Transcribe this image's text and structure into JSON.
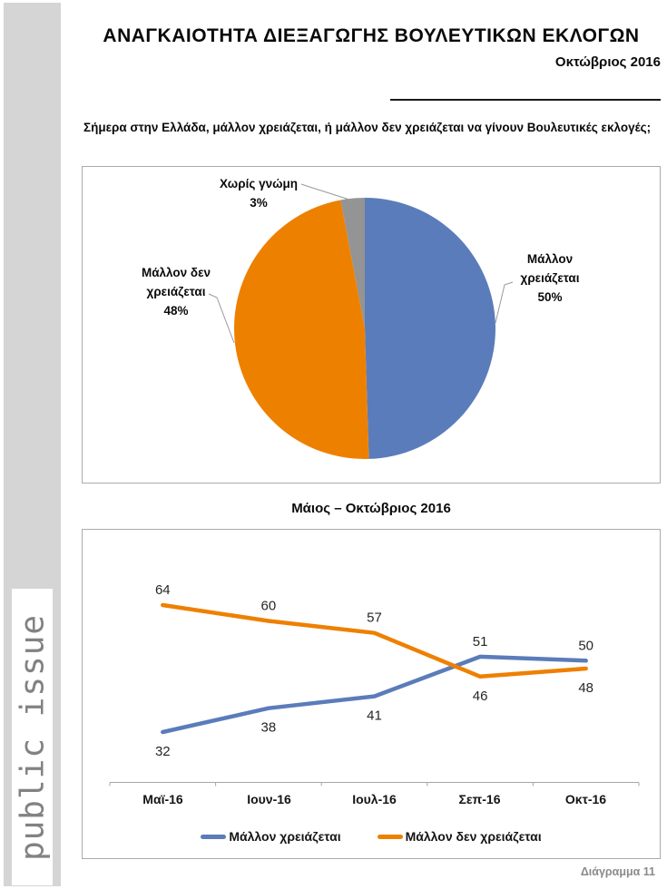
{
  "brand": {
    "logo_text": "public issue"
  },
  "header": {
    "title": "ΑΝΑΓΚΑΙΟΤΗΤΑ ΔΙΕΞΑΓΩΓΗΣ ΒΟΥΛΕΥΤΙΚΩΝ ΕΚΛΟΓΩΝ",
    "date": "Οκτώβριος 2016",
    "question": "Σήμερα στην Ελλάδα, μάλλον χρειάζεται, ή μάλλον δεν χρειάζεται να γίνουν Βουλευτικές εκλογές;"
  },
  "footer": {
    "caption": "Διάγραμμα 11"
  },
  "colors": {
    "need": "#5b7cba",
    "not_need": "#ee8000",
    "no_opinion": "#949494",
    "sidebar": "#d5d5d5",
    "box_border": "#ababab",
    "leader_line": "#999999",
    "axis": "#a6a6a6",
    "muted_text": "#8a8a8a"
  },
  "chart_data": [
    {
      "type": "pie",
      "start_angle_deg": 0,
      "direction": "clockwise",
      "slices": [
        {
          "label": "Μάλλον χρειάζεται",
          "value": 50,
          "percent_label": "50%",
          "color": "#5b7cba",
          "label_lines": [
            "Μάλλον",
            "χρειάζεται",
            "50%"
          ]
        },
        {
          "label": "Μάλλον δεν χρειάζεται",
          "value": 48,
          "percent_label": "48%",
          "color": "#ee8000",
          "label_lines": [
            "Μάλλον δεν",
            "χρειάζεται",
            "48%"
          ]
        },
        {
          "label": "Χωρίς γνώμη",
          "value": 3,
          "percent_label": "3%",
          "color": "#949494",
          "label_lines": [
            "Χωρίς γνώμη",
            "3%"
          ]
        }
      ]
    },
    {
      "type": "line",
      "title": "Μάιος – Οκτώβριος 2016",
      "categories": [
        "Μαϊ-16",
        "Ιουν-16",
        "Ιουλ-16",
        "Σεπ-16",
        "Οκτ-16"
      ],
      "series": [
        {
          "name": "Μάλλον χρειάζεται",
          "color": "#5b7cba",
          "values": [
            32,
            38,
            41,
            51,
            50
          ]
        },
        {
          "name": "Μάλλον δεν χρειάζεται",
          "color": "#ee8000",
          "values": [
            64,
            60,
            57,
            46,
            48
          ]
        }
      ],
      "ylim": [
        25,
        70
      ],
      "grid": false,
      "legend_position": "bottom",
      "data_labels": true
    }
  ]
}
